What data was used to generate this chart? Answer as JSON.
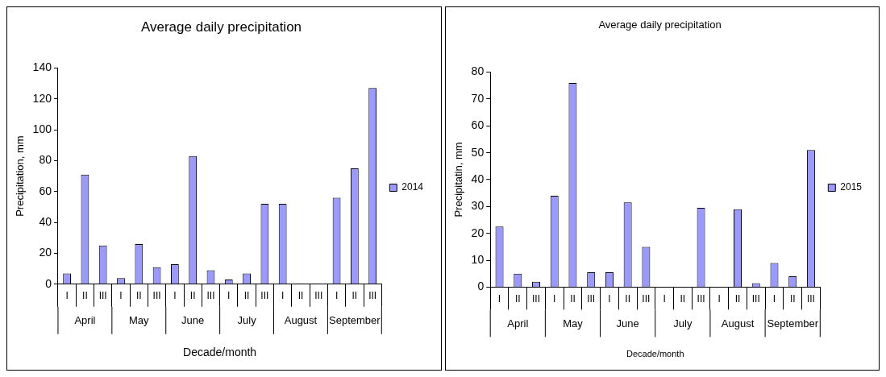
{
  "chart_data": [
    {
      "type": "bar",
      "title": "Average daily precipitation",
      "xlabel": "Decade/month",
      "ylabel": "Precipitation, mm",
      "categories": [
        "I",
        "II",
        "III",
        "I",
        "II",
        "III",
        "I",
        "II",
        "III",
        "I",
        "II",
        "III",
        "I",
        "II",
        "III",
        "I",
        "II",
        "III"
      ],
      "series": [
        {
          "name": "2014",
          "color": "#9999ff",
          "values": [
            7,
            71,
            25,
            4,
            26,
            11,
            13,
            83,
            9,
            3,
            7,
            52,
            52,
            0,
            0,
            56,
            75,
            127
          ]
        }
      ],
      "annotations": [
        "April",
        "May",
        "June",
        "July",
        "August",
        "September"
      ],
      "ylim": [
        0,
        140
      ],
      "yticks": [
        0,
        20,
        40,
        60,
        80,
        100,
        120,
        140
      ],
      "grid": false,
      "legend": "right"
    },
    {
      "type": "bar",
      "title": "Average daily precipitation",
      "xlabel": "Decade/month",
      "ylabel": "Precipitatin, mm",
      "categories": [
        "I",
        "II",
        "III",
        "I",
        "II",
        "III",
        "I",
        "II",
        "III",
        "I",
        "II",
        "III",
        "I",
        "II",
        "III",
        "I",
        "II",
        "III"
      ],
      "series": [
        {
          "name": "2015",
          "color": "#9999ff",
          "values": [
            22.5,
            5,
            2,
            34,
            76,
            5.5,
            5.5,
            31.5,
            15,
            0,
            0,
            29.5,
            0,
            29,
            1.5,
            9,
            4,
            51
          ]
        }
      ],
      "annotations": [
        "April",
        "May",
        "June",
        "July",
        "August",
        "September"
      ],
      "ylim": [
        0,
        80
      ],
      "yticks": [
        0,
        10,
        20,
        30,
        40,
        50,
        60,
        70,
        80
      ],
      "grid": false,
      "legend": "right"
    }
  ]
}
